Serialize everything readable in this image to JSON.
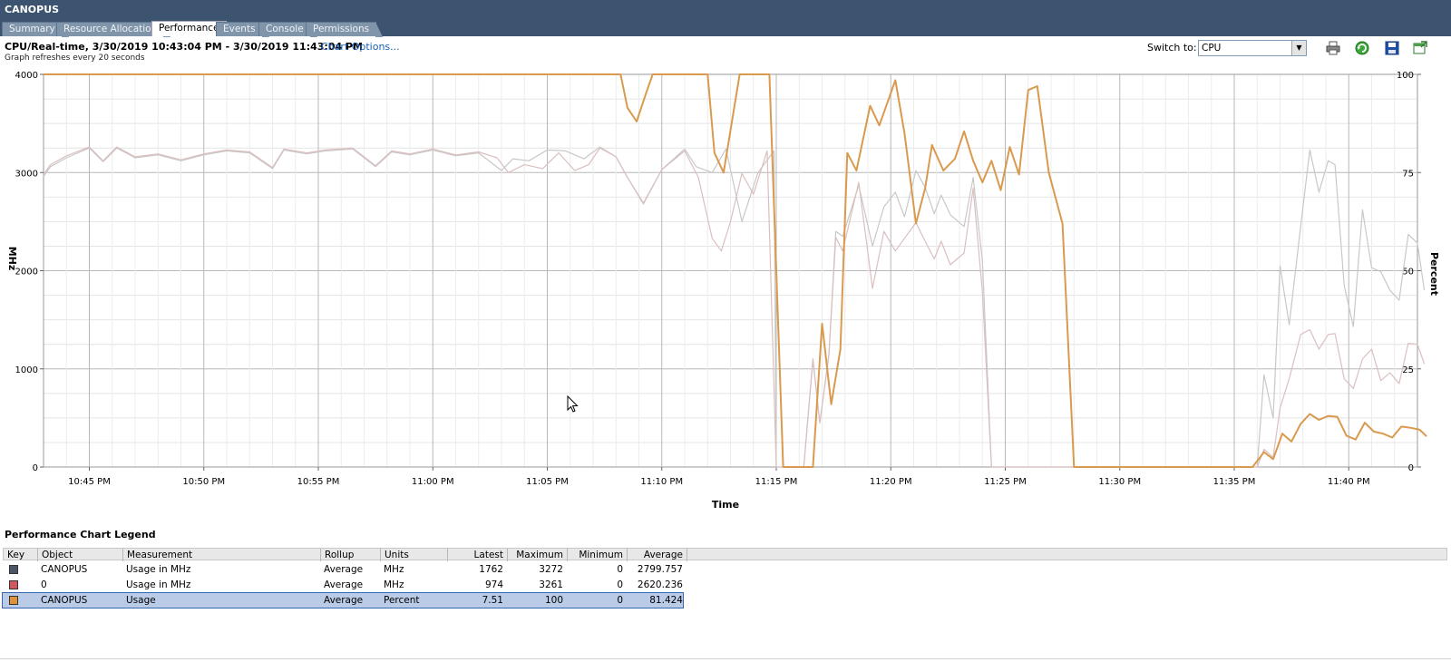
{
  "window": {
    "title": "CANOPUS"
  },
  "tabs": [
    {
      "label": "Summary"
    },
    {
      "label": "Resource Allocation"
    },
    {
      "label": "Performance",
      "active": true
    },
    {
      "label": "Events"
    },
    {
      "label": "Console"
    },
    {
      "label": "Permissions"
    }
  ],
  "header": {
    "title": "CPU/Real-time, 3/30/2019 10:43:04 PM - 3/30/2019 11:43:04 PM",
    "chart_options_link": "Chart Options...",
    "subtitle": "Graph refreshes every 20 seconds",
    "switch_to_label": "Switch to:",
    "switch_to_value": "CPU"
  },
  "toolbar_icons": [
    "print-icon",
    "refresh-icon",
    "save-icon",
    "popout-icon"
  ],
  "chart_data": {
    "type": "line",
    "xlabel": "Time",
    "ylabel_left": "MHz",
    "ylabel_right": "Percent",
    "ylim_left": [
      0,
      4000
    ],
    "ylim_right": [
      0,
      100
    ],
    "yticks_left": [
      "0",
      "1000",
      "2000",
      "3000",
      "4000"
    ],
    "yticks_right": [
      "0",
      "25",
      "50",
      "75",
      "100"
    ],
    "xlim_minutes": [
      0,
      60
    ],
    "xticks": [
      {
        "label": "10:45 PM",
        "t": 2
      },
      {
        "label": "10:50 PM",
        "t": 7
      },
      {
        "label": "10:55 PM",
        "t": 12
      },
      {
        "label": "11:00 PM",
        "t": 17
      },
      {
        "label": "11:05 PM",
        "t": 22
      },
      {
        "label": "11:10 PM",
        "t": 27
      },
      {
        "label": "11:15 PM",
        "t": 32
      },
      {
        "label": "11:20 PM",
        "t": 37
      },
      {
        "label": "11:25 PM",
        "t": 42
      },
      {
        "label": "11:30 PM",
        "t": 47
      },
      {
        "label": "11:35 PM",
        "t": 52
      },
      {
        "label": "11:40 PM",
        "t": 57
      }
    ],
    "grid": true,
    "series": [
      {
        "name": "CANOPUS Usage in MHz",
        "axis": "left",
        "color": "#c8c8c8",
        "points": [
          [
            0,
            2960
          ],
          [
            0.3,
            3060
          ],
          [
            1.0,
            3150
          ],
          [
            2.0,
            3250
          ],
          [
            2.6,
            3110
          ],
          [
            3.2,
            3250
          ],
          [
            4.0,
            3150
          ],
          [
            5.0,
            3180
          ],
          [
            6.0,
            3120
          ],
          [
            7.0,
            3180
          ],
          [
            8.0,
            3220
          ],
          [
            9.0,
            3200
          ],
          [
            10.0,
            3040
          ],
          [
            10.5,
            3230
          ],
          [
            11.5,
            3190
          ],
          [
            12.3,
            3220
          ],
          [
            13.5,
            3240
          ],
          [
            14.5,
            3060
          ],
          [
            15.2,
            3210
          ],
          [
            16.0,
            3180
          ],
          [
            17.0,
            3230
          ],
          [
            18.0,
            3170
          ],
          [
            19.0,
            3200
          ],
          [
            20.0,
            3020
          ],
          [
            20.5,
            3140
          ],
          [
            21.2,
            3120
          ],
          [
            22.0,
            3230
          ],
          [
            22.8,
            3220
          ],
          [
            23.6,
            3140
          ],
          [
            24.3,
            3260
          ],
          [
            25.0,
            3160
          ],
          [
            25.5,
            2950
          ],
          [
            26.2,
            2680
          ],
          [
            27.0,
            3030
          ],
          [
            28.0,
            3240
          ],
          [
            28.5,
            3060
          ],
          [
            29.2,
            3000
          ],
          [
            29.8,
            3240
          ],
          [
            30.5,
            2500
          ],
          [
            31.2,
            3000
          ],
          [
            31.9,
            3220
          ],
          [
            32.0,
            0
          ],
          [
            33.2,
            0
          ],
          [
            33.6,
            1100
          ],
          [
            33.9,
            450
          ],
          [
            34.3,
            1150
          ],
          [
            34.6,
            2400
          ],
          [
            34.9,
            2350
          ],
          [
            35.6,
            2870
          ],
          [
            36.2,
            2250
          ],
          [
            36.7,
            2650
          ],
          [
            37.2,
            2800
          ],
          [
            37.6,
            2550
          ],
          [
            38.1,
            3020
          ],
          [
            38.5,
            2850
          ],
          [
            38.9,
            2580
          ],
          [
            39.2,
            2770
          ],
          [
            39.6,
            2570
          ],
          [
            40.2,
            2450
          ],
          [
            40.6,
            2950
          ],
          [
            41.0,
            2100
          ],
          [
            41.4,
            0
          ],
          [
            53.0,
            0
          ],
          [
            53.3,
            940
          ],
          [
            53.7,
            500
          ],
          [
            54.0,
            2050
          ],
          [
            54.4,
            1450
          ],
          [
            54.9,
            2450
          ],
          [
            55.3,
            3230
          ],
          [
            55.7,
            2800
          ],
          [
            56.1,
            3120
          ],
          [
            56.4,
            3080
          ],
          [
            56.8,
            1850
          ],
          [
            57.2,
            1430
          ],
          [
            57.6,
            2620
          ],
          [
            58.0,
            2030
          ],
          [
            58.4,
            1990
          ],
          [
            58.8,
            1800
          ],
          [
            59.2,
            1700
          ],
          [
            59.6,
            2370
          ],
          [
            60.0,
            2280
          ],
          [
            60.3,
            1800
          ]
        ]
      },
      {
        "name": "0 Usage in MHz",
        "axis": "left",
        "color": "#dbbfbf",
        "points": [
          [
            0,
            2980
          ],
          [
            0.3,
            3080
          ],
          [
            1.0,
            3170
          ],
          [
            2.0,
            3260
          ],
          [
            2.6,
            3120
          ],
          [
            3.2,
            3260
          ],
          [
            4.0,
            3160
          ],
          [
            5.0,
            3190
          ],
          [
            6.0,
            3130
          ],
          [
            7.0,
            3190
          ],
          [
            8.0,
            3230
          ],
          [
            9.0,
            3210
          ],
          [
            10.0,
            3050
          ],
          [
            10.5,
            3240
          ],
          [
            11.5,
            3200
          ],
          [
            12.3,
            3230
          ],
          [
            13.5,
            3250
          ],
          [
            14.5,
            3070
          ],
          [
            15.2,
            3220
          ],
          [
            16.0,
            3190
          ],
          [
            17.0,
            3240
          ],
          [
            18.0,
            3180
          ],
          [
            19.0,
            3210
          ],
          [
            19.8,
            3150
          ],
          [
            20.3,
            3000
          ],
          [
            21.0,
            3080
          ],
          [
            21.8,
            3040
          ],
          [
            22.5,
            3200
          ],
          [
            23.2,
            3020
          ],
          [
            23.8,
            3080
          ],
          [
            24.3,
            3250
          ],
          [
            25.0,
            3160
          ],
          [
            25.5,
            2950
          ],
          [
            26.2,
            2690
          ],
          [
            27.0,
            3030
          ],
          [
            28.0,
            3220
          ],
          [
            28.6,
            2950
          ],
          [
            29.2,
            2330
          ],
          [
            29.6,
            2200
          ],
          [
            30.0,
            2500
          ],
          [
            30.5,
            2990
          ],
          [
            31.0,
            2780
          ],
          [
            31.6,
            3220
          ],
          [
            32.0,
            0
          ],
          [
            33.2,
            0
          ],
          [
            33.6,
            1100
          ],
          [
            33.9,
            450
          ],
          [
            34.3,
            1150
          ],
          [
            34.6,
            2340
          ],
          [
            34.9,
            2200
          ],
          [
            35.6,
            2900
          ],
          [
            36.2,
            1820
          ],
          [
            36.7,
            2400
          ],
          [
            37.2,
            2200
          ],
          [
            37.6,
            2330
          ],
          [
            38.1,
            2490
          ],
          [
            38.5,
            2300
          ],
          [
            38.9,
            2120
          ],
          [
            39.2,
            2300
          ],
          [
            39.6,
            2060
          ],
          [
            40.2,
            2180
          ],
          [
            40.6,
            2840
          ],
          [
            41.0,
            1780
          ],
          [
            41.4,
            0
          ],
          [
            53.0,
            0
          ],
          [
            53.3,
            180
          ],
          [
            53.7,
            100
          ],
          [
            54.0,
            600
          ],
          [
            54.4,
            900
          ],
          [
            54.9,
            1350
          ],
          [
            55.3,
            1400
          ],
          [
            55.7,
            1200
          ],
          [
            56.1,
            1350
          ],
          [
            56.4,
            1360
          ],
          [
            56.8,
            900
          ],
          [
            57.2,
            800
          ],
          [
            57.6,
            1100
          ],
          [
            58.0,
            1200
          ],
          [
            58.4,
            880
          ],
          [
            58.8,
            960
          ],
          [
            59.2,
            850
          ],
          [
            59.6,
            1260
          ],
          [
            60.0,
            1250
          ],
          [
            60.3,
            1050
          ]
        ]
      },
      {
        "name": "CANOPUS Usage",
        "axis": "right",
        "color": "#d99a4e",
        "points": [
          [
            0,
            100
          ],
          [
            25.2,
            100
          ],
          [
            25.5,
            91.5
          ],
          [
            25.9,
            88
          ],
          [
            26.3,
            95
          ],
          [
            26.6,
            100
          ],
          [
            29.0,
            100
          ],
          [
            29.3,
            80
          ],
          [
            29.7,
            75
          ],
          [
            30.4,
            100
          ],
          [
            31.7,
            100
          ],
          [
            32.3,
            0
          ],
          [
            33.6,
            0
          ],
          [
            34.0,
            36.5
          ],
          [
            34.4,
            16
          ],
          [
            34.8,
            30
          ],
          [
            35.1,
            80
          ],
          [
            35.5,
            75.5
          ],
          [
            36.1,
            92
          ],
          [
            36.5,
            87
          ],
          [
            37.2,
            98.5
          ],
          [
            37.6,
            85
          ],
          [
            38.1,
            62
          ],
          [
            38.5,
            71
          ],
          [
            38.8,
            82
          ],
          [
            39.3,
            75.5
          ],
          [
            39.8,
            78.5
          ],
          [
            40.2,
            85.5
          ],
          [
            40.6,
            78
          ],
          [
            41.0,
            72.5
          ],
          [
            41.4,
            78
          ],
          [
            41.8,
            70.5
          ],
          [
            42.2,
            81.5
          ],
          [
            42.6,
            74.5
          ],
          [
            43.0,
            96
          ],
          [
            43.4,
            97
          ],
          [
            43.9,
            75
          ],
          [
            44.5,
            62
          ],
          [
            45.0,
            0
          ],
          [
            52.8,
            0
          ],
          [
            53.3,
            3.8
          ],
          [
            53.7,
            2
          ],
          [
            54.1,
            8.5
          ],
          [
            54.5,
            6.5
          ],
          [
            54.9,
            11
          ],
          [
            55.3,
            13.5
          ],
          [
            55.7,
            12
          ],
          [
            56.1,
            13
          ],
          [
            56.5,
            12.8
          ],
          [
            56.9,
            8
          ],
          [
            57.3,
            7
          ],
          [
            57.7,
            11.3
          ],
          [
            58.1,
            9
          ],
          [
            58.5,
            8.5
          ],
          [
            58.9,
            7.5
          ],
          [
            59.3,
            10.3
          ],
          [
            59.7,
            10
          ],
          [
            60.1,
            9.5
          ],
          [
            60.4,
            7.8
          ]
        ]
      }
    ]
  },
  "legend": {
    "title": "Performance Chart Legend",
    "columns": [
      "Key",
      "Object",
      "Measurement",
      "Rollup",
      "Units",
      "Latest",
      "Maximum",
      "Minimum",
      "Average"
    ],
    "rows": [
      {
        "key_color": "#4a5568",
        "object": "CANOPUS",
        "measurement": "Usage in MHz",
        "rollup": "Average",
        "units": "MHz",
        "latest": "1762",
        "maximum": "3272",
        "minimum": "0",
        "average": "2799.757"
      },
      {
        "key_color": "#d0585e",
        "object": "0",
        "measurement": "Usage in MHz",
        "rollup": "Average",
        "units": "MHz",
        "latest": "974",
        "maximum": "3261",
        "minimum": "0",
        "average": "2620.236"
      },
      {
        "key_color": "#e0923a",
        "object": "CANOPUS",
        "measurement": "Usage",
        "rollup": "Average",
        "units": "Percent",
        "latest": "7.51",
        "maximum": "100",
        "minimum": "0",
        "average": "81.424",
        "selected": true
      }
    ]
  }
}
